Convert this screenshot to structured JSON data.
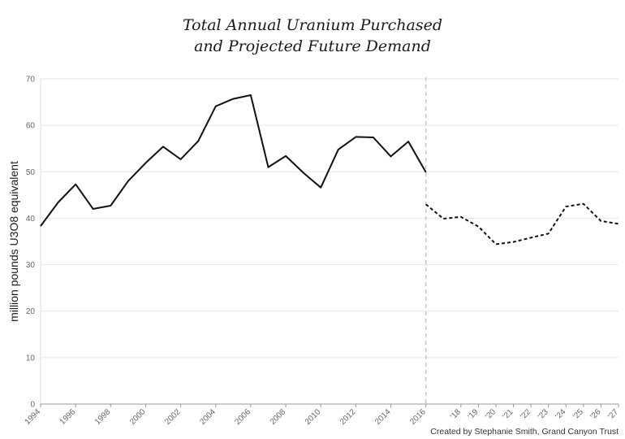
{
  "chart_data": {
    "type": "line",
    "title_line1": "Total Annual Uranium Purchased",
    "title_line2": "and Projected Future Demand",
    "ylabel": "million pounds U3O8 equivalent",
    "xlabel": "",
    "ylim": [
      0,
      70
    ],
    "yticks": [
      0,
      10,
      20,
      30,
      40,
      50,
      60,
      70
    ],
    "x": [
      1994,
      1995,
      1996,
      1997,
      1998,
      1999,
      2000,
      2001,
      2002,
      2003,
      2004,
      2005,
      2006,
      2007,
      2008,
      2009,
      2010,
      2011,
      2012,
      2013,
      2014,
      2015,
      2016,
      2017,
      2018,
      2019,
      2020,
      2021,
      2022,
      2023,
      2024,
      2025,
      2026,
      2027
    ],
    "xtick_labels": [
      "1994",
      "1996",
      "1998",
      "2000",
      "2002",
      "2004",
      "2006",
      "2008",
      "2010",
      "2012",
      "2014",
      "2016",
      "'18",
      "'19",
      "'20",
      "'21",
      "'22",
      "'23",
      "'24",
      "'25",
      "'26",
      "'27"
    ],
    "xtick_years": [
      1994,
      1996,
      1998,
      2000,
      2002,
      2004,
      2006,
      2008,
      2010,
      2012,
      2014,
      2016,
      2018,
      2019,
      2020,
      2021,
      2022,
      2023,
      2024,
      2025,
      2026,
      2027
    ],
    "series": [
      {
        "style": "solid",
        "x": [
          1994,
          1995,
          1996,
          1997,
          1998,
          1999,
          2000,
          2001,
          2002,
          2003,
          2004,
          2005,
          2006,
          2007,
          2008,
          2009,
          2010,
          2011,
          2012,
          2013,
          2014,
          2015,
          2016
        ],
        "values": [
          38.3,
          43.4,
          47.3,
          42.0,
          42.7,
          48.0,
          51.9,
          55.4,
          52.7,
          56.6,
          64.1,
          65.7,
          66.5,
          51.0,
          53.4,
          49.8,
          46.6,
          54.8,
          57.5,
          57.4,
          53.3,
          56.5,
          49.9
        ]
      },
      {
        "style": "dashed",
        "x": [
          2016,
          2017,
          2018,
          2019,
          2020,
          2021,
          2022,
          2023,
          2024,
          2025,
          2026,
          2027
        ],
        "values": [
          43.0,
          39.9,
          40.3,
          38.2,
          34.4,
          34.9,
          35.8,
          36.7,
          42.5,
          43.1,
          39.4,
          38.8
        ]
      }
    ],
    "divider_x": 2016,
    "grid": true,
    "line_color": "#111111",
    "grid_color": "#e6e6e6",
    "divider_color": "#c8c8c8",
    "credit": "Created by Stephanie Smith, Grand Canyon Trust"
  }
}
